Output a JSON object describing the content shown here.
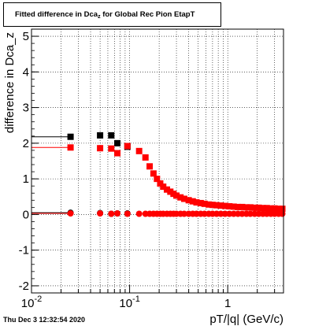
{
  "title": {
    "main": "Fitted difference in Dca",
    "subscript": "z",
    "rest": " for Global Rec Pion EtapT"
  },
  "footer": "Thu Dec  3 12:32:54 2020",
  "chart_data": {
    "type": "scatter",
    "title": "Fitted difference in Dca_z for Global Rec Pion EtapT",
    "xlabel": "pT/|q| (GeV/c)",
    "ylabel": "difference in Dca_z",
    "xscale": "log",
    "xlim": [
      0.01,
      3.7
    ],
    "ylim": [
      -2.2,
      5.2
    ],
    "grid": true,
    "x_ticks": [
      {
        "value": 0.01,
        "base": "10",
        "exp": "-2"
      },
      {
        "value": 0.1,
        "base": "10",
        "exp": "-1"
      },
      {
        "value": 1,
        "base": "1",
        "exp": ""
      }
    ],
    "y_ticks": [
      -2,
      -1,
      0,
      1,
      2,
      3,
      4,
      5
    ],
    "series": [
      {
        "color": "#000000",
        "marker": "square",
        "x": [
          0.025,
          0.05,
          0.065,
          0.075,
          0.095
        ],
        "y": [
          2.18,
          2.22,
          2.22,
          2.0,
          1.9
        ],
        "xerr_low": [
          0.025,
          0.0,
          0.0,
          0.0,
          0.0
        ]
      },
      {
        "color": "#000000",
        "marker": "circle",
        "x": [
          0.025,
          0.05,
          0.065,
          0.075,
          0.095
        ],
        "y": [
          0.05,
          0.04,
          0.02,
          0.03,
          0.03
        ],
        "xerr_low": [
          0.025,
          0.0,
          0.0,
          0.0,
          0.0
        ]
      },
      {
        "color": "#ff0000",
        "marker": "square",
        "x": [
          0.025,
          0.05,
          0.065,
          0.075,
          0.095,
          0.125,
          0.145,
          0.16,
          0.175,
          0.19,
          0.205,
          0.22,
          0.24,
          0.26,
          0.28,
          0.3,
          0.33,
          0.36,
          0.4,
          0.44,
          0.48,
          0.53,
          0.58,
          0.64,
          0.7,
          0.77,
          0.85,
          0.94,
          1.04,
          1.15,
          1.27,
          1.4,
          1.55,
          1.7,
          1.88,
          2.07,
          2.28,
          2.5,
          2.75,
          3.0,
          3.3,
          3.6
        ],
        "y": [
          1.88,
          1.86,
          1.85,
          1.72,
          1.92,
          1.78,
          1.6,
          1.35,
          1.15,
          1.0,
          0.87,
          0.78,
          0.7,
          0.64,
          0.58,
          0.53,
          0.48,
          0.44,
          0.4,
          0.37,
          0.34,
          0.32,
          0.3,
          0.28,
          0.27,
          0.26,
          0.25,
          0.24,
          0.23,
          0.22,
          0.21,
          0.21,
          0.2,
          0.2,
          0.19,
          0.19,
          0.18,
          0.18,
          0.17,
          0.17,
          0.16,
          0.16
        ],
        "xerr_low": [
          0.025,
          0.0,
          0.0,
          0.0,
          0.0,
          0.0,
          0.0,
          0.0,
          0.0,
          0.0,
          0.0,
          0.0,
          0.0,
          0.0,
          0.0,
          0.0,
          0.0,
          0.0,
          0.0,
          0.0,
          0.0,
          0.0,
          0.0,
          0.0,
          0.0,
          0.0,
          0.0,
          0.0,
          0.0,
          0.0,
          0.0,
          0.0,
          0.0,
          0.0,
          0.0,
          0.0,
          0.0,
          0.0,
          0.0,
          0.0,
          0.0,
          0.0
        ]
      },
      {
        "color": "#ff0000",
        "marker": "circle",
        "x": [
          0.025,
          0.05,
          0.065,
          0.075,
          0.095,
          0.125,
          0.145,
          0.16,
          0.175,
          0.19,
          0.205,
          0.22,
          0.24,
          0.26,
          0.28,
          0.3,
          0.33,
          0.36,
          0.4,
          0.44,
          0.48,
          0.53,
          0.58,
          0.64,
          0.7,
          0.77,
          0.85,
          0.94,
          1.04,
          1.15,
          1.27,
          1.4,
          1.55,
          1.7,
          1.88,
          2.07,
          2.28,
          2.5,
          2.75,
          3.0,
          3.3,
          3.6
        ],
        "y": [
          0.03,
          0.03,
          0.02,
          0.03,
          0.02,
          0.02,
          0.02,
          0.02,
          0.02,
          0.02,
          0.02,
          0.02,
          0.02,
          0.02,
          0.02,
          0.02,
          0.02,
          0.02,
          0.02,
          0.02,
          0.02,
          0.02,
          0.02,
          0.02,
          0.02,
          0.02,
          0.02,
          0.02,
          0.02,
          0.02,
          0.02,
          0.02,
          0.02,
          0.02,
          0.02,
          0.02,
          0.02,
          0.02,
          0.02,
          0.02,
          0.02,
          0.02
        ],
        "xerr_low": [
          0.025,
          0.0,
          0.0,
          0.0,
          0.0,
          0.0,
          0.0,
          0.0,
          0.0,
          0.0,
          0.0,
          0.0,
          0.0,
          0.0,
          0.0,
          0.0,
          0.0,
          0.0,
          0.0,
          0.0,
          0.0,
          0.0,
          0.0,
          0.0,
          0.0,
          0.0,
          0.0,
          0.0,
          0.0,
          0.0,
          0.0,
          0.0,
          0.0,
          0.0,
          0.0,
          0.0,
          0.0,
          0.0,
          0.0,
          0.0,
          0.0,
          0.0
        ]
      }
    ]
  }
}
